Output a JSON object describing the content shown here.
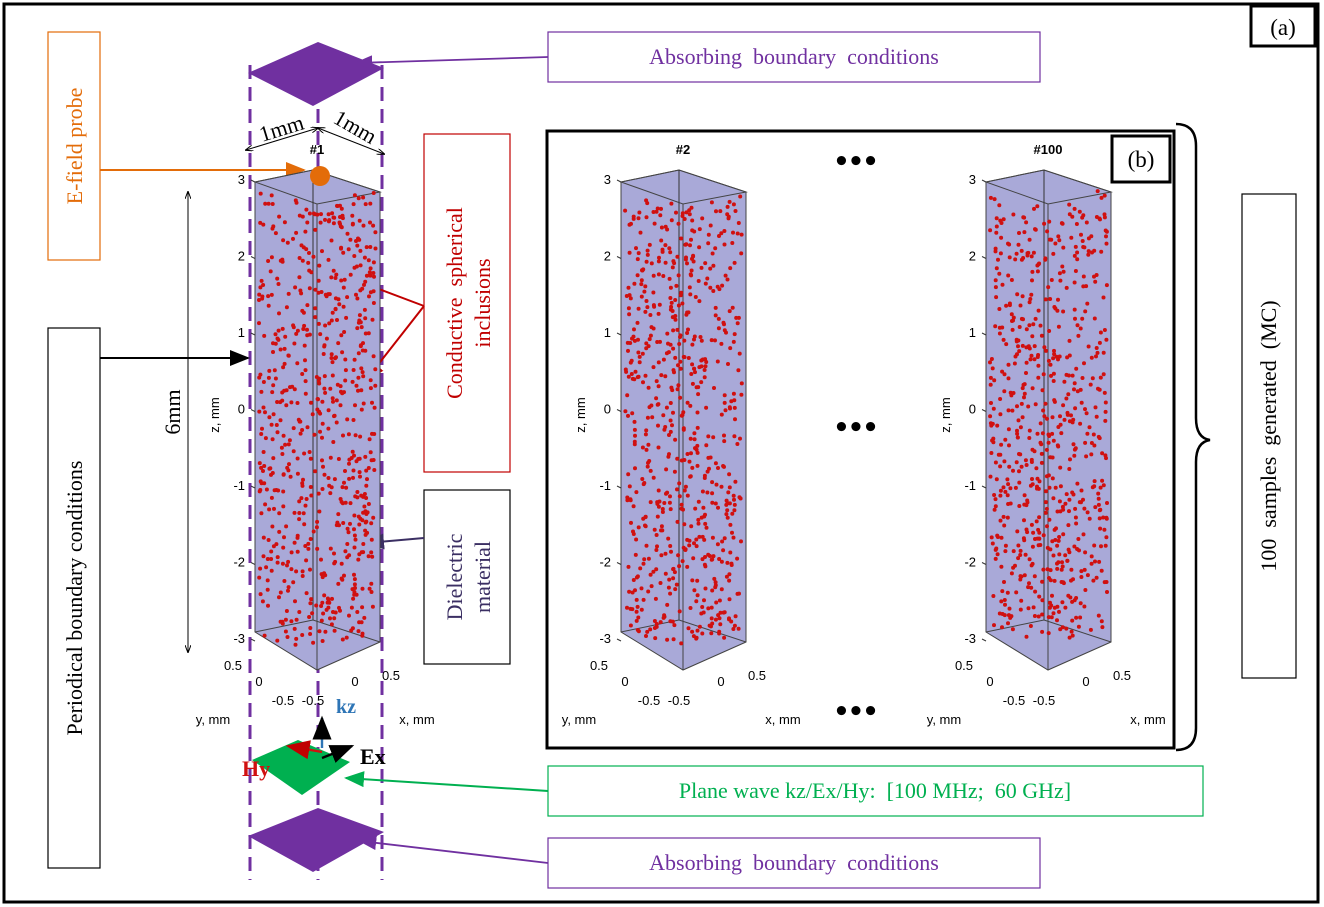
{
  "panel_a_label": "(a)",
  "panel_b_label": "(b)",
  "callouts": {
    "absorbing_top": "Absorbing  boundary  conditions",
    "absorbing_bottom": "Absorbing  boundary  conditions",
    "efield_probe": "E-field probe",
    "periodical": "Periodical boundary conditions",
    "conductive_line1": "Conductive  spherical",
    "conductive_line2": "inclusions",
    "dielectric_line1": "Dielectric",
    "dielectric_line2": "material",
    "plane_wave": "Plane wave kz/Ex/Hy:  [100 MHz;  60 GHz]",
    "samples": "100  samples  generated  (MC)"
  },
  "dimensions": {
    "width_left": "1mm",
    "width_right": "1mm",
    "height": "6mm"
  },
  "wave_axes": {
    "kz": "kz",
    "ex": "Ex",
    "hy": "Hy"
  },
  "ellipsis": "•••",
  "plots": [
    {
      "title": "#1",
      "zlabel": "z, mm",
      "xlabel": "x, mm",
      "ylabel": "y, mm",
      "z_ticks": [
        "3",
        "2",
        "1",
        "0",
        "-1",
        "-2",
        "-3"
      ],
      "y_ticks": [
        "0.5",
        "0",
        "-0.5"
      ],
      "x_ticks": [
        "-0.5",
        "0",
        "0.5"
      ]
    },
    {
      "title": "#2",
      "zlabel": "z, mm",
      "xlabel": "x, mm",
      "ylabel": "y, mm",
      "z_ticks": [
        "3",
        "2",
        "1",
        "0",
        "-1",
        "-2",
        "-3"
      ],
      "y_ticks": [
        "0.5",
        "0",
        "-0.5"
      ],
      "x_ticks": [
        "-0.5",
        "0",
        "0.5"
      ]
    },
    {
      "title": "#100",
      "zlabel": "z, mm",
      "xlabel": "x, mm",
      "ylabel": "y, mm",
      "z_ticks": [
        "3",
        "2",
        "1",
        "0",
        "-1",
        "-2",
        "-3"
      ],
      "y_ticks": [
        "0.5",
        "0",
        "-0.5"
      ],
      "x_ticks": [
        "-0.5",
        "0",
        "0.5"
      ]
    }
  ],
  "colors": {
    "purple": "#7030a0",
    "orange": "#e36c09",
    "dark_red": "#c00000",
    "green": "#00b050",
    "cube_fill": "#a9a9d8",
    "dot": "#d01010",
    "kz_blue": "#2e75b6"
  }
}
